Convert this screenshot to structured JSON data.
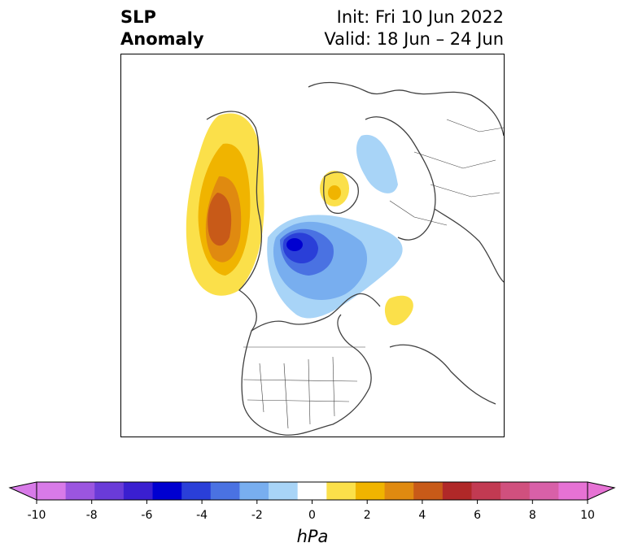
{
  "title": {
    "left_line1": "SLP",
    "left_line2": "Anomaly",
    "right_line1": "Init: Fri 10 Jun 2022",
    "right_line2": "Valid: 18 Jun – 24 Jun"
  },
  "colorbar": {
    "units": "hPa",
    "range": [
      -10,
      10
    ],
    "extend": "both",
    "tick_labels": [
      "-10",
      "-8",
      "-6",
      "-4",
      "-2",
      "0",
      "2",
      "4",
      "6",
      "8",
      "10"
    ],
    "colors": [
      "#d87ae8",
      "#9b55e0",
      "#6a3bd8",
      "#3a1fd0",
      "#0000d0",
      "#2a3fd8",
      "#4a72e2",
      "#78aeef",
      "#a8d4f7",
      "#ffffff",
      "#fbe04a",
      "#f0b400",
      "#e08a10",
      "#c85a18",
      "#b02828",
      "#c23a52",
      "#d0507e",
      "#d860a8",
      "#e672d4"
    ],
    "end_colors": {
      "low": "#d87ae8",
      "high": "#e672d4"
    }
  },
  "map": {
    "projection": "north polar stereographic",
    "anomaly_features": [
      {
        "name": "western Canada / Alaska high",
        "sign": "positive",
        "peak_hPa": 4
      },
      {
        "name": "Hudson Bay / Arctic low",
        "sign": "negative",
        "peak_hPa": -6
      },
      {
        "name": "Greenland high",
        "sign": "positive",
        "peak_hPa": 2
      },
      {
        "name": "North Atlantic high",
        "sign": "positive",
        "peak_hPa": 2
      },
      {
        "name": "Siberian low",
        "sign": "negative",
        "peak_hPa": -2
      }
    ]
  }
}
